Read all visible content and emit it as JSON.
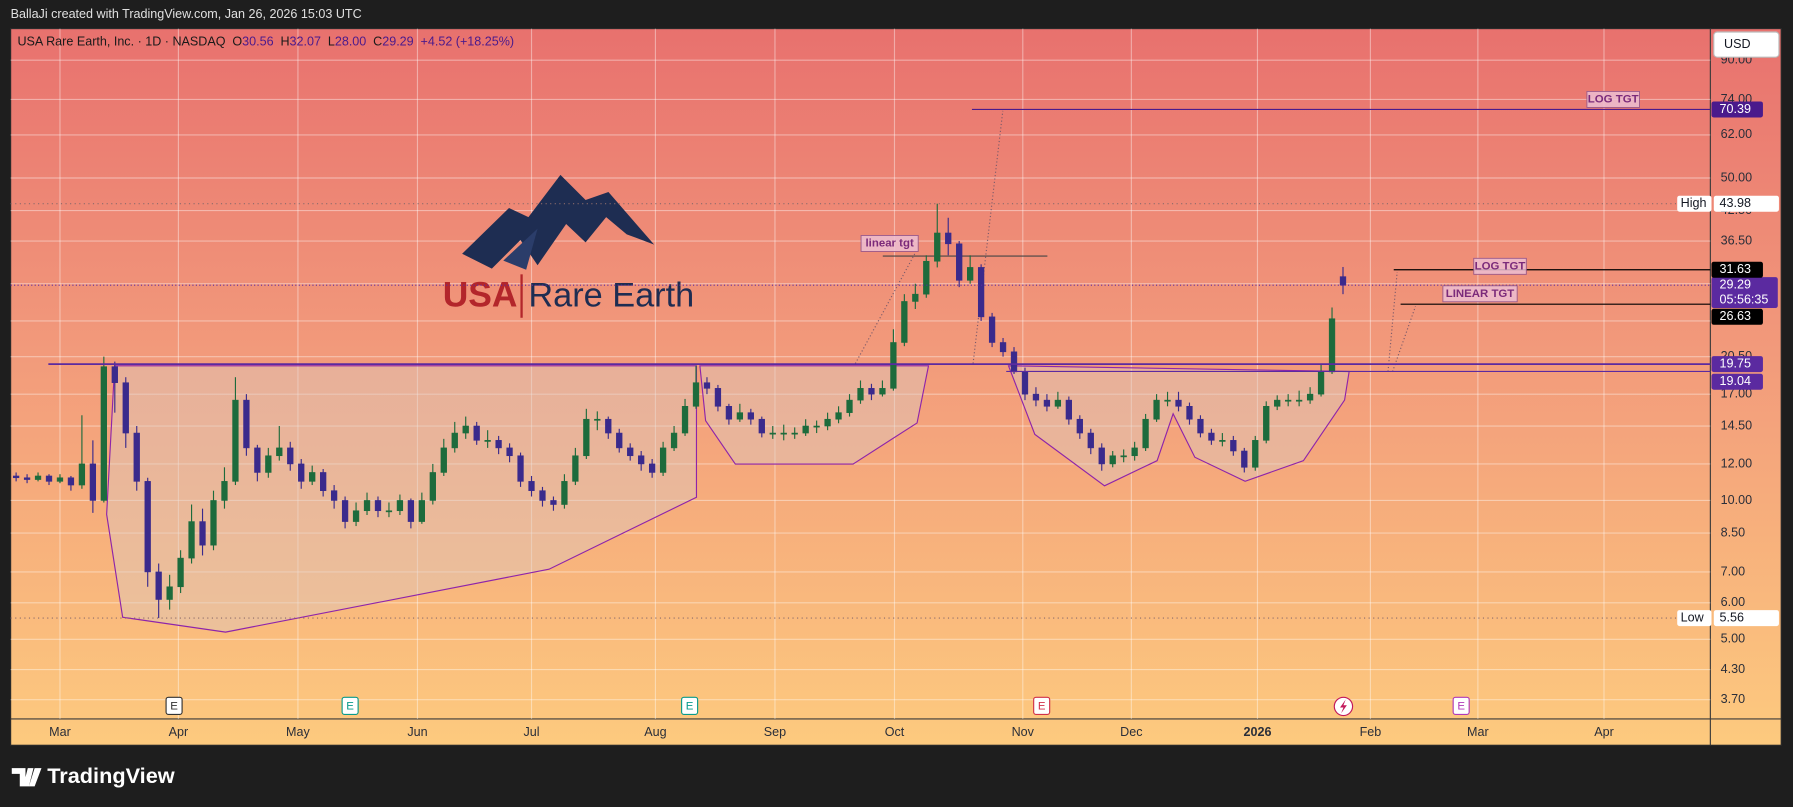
{
  "header": {
    "credit": "BallaJi created with TradingView.com, Jan 26, 2026 15:03 UTC",
    "brand": "TradingView",
    "currency": "USD"
  },
  "chart_data": {
    "type": "candlestick",
    "title": "USA Rare Earth, Inc. · 1D · NASDAQ",
    "ohlc_labels": [
      "O",
      "H",
      "L",
      "C"
    ],
    "last_labels": [
      "30.56",
      "32.07",
      "28.00",
      "29.29"
    ],
    "change_label": "+4.52 (+18.25%)",
    "logo": [
      "USA",
      "Rare Earth"
    ],
    "log_scale": true,
    "grid": true,
    "up_color": "#1d6b3c",
    "down_color": "#3a2a8c",
    "ohlc": [
      [
        11.3,
        11.5,
        11.0,
        11.2
      ],
      [
        11.2,
        11.4,
        10.9,
        11.1
      ],
      [
        11.1,
        11.5,
        11.0,
        11.3
      ],
      [
        11.3,
        11.4,
        10.8,
        11.0
      ],
      [
        11.0,
        11.4,
        10.9,
        11.2
      ],
      [
        11.2,
        11.3,
        10.5,
        10.8
      ],
      [
        10.8,
        15.3,
        10.6,
        12.0
      ],
      [
        12.0,
        13.5,
        9.4,
        10.0
      ],
      [
        10.0,
        20.5,
        9.9,
        19.5
      ],
      [
        19.5,
        20.0,
        15.5,
        18.0
      ],
      [
        18.0,
        18.5,
        13.0,
        14.0
      ],
      [
        14.0,
        14.5,
        10.5,
        11.0
      ],
      [
        11.0,
        11.2,
        6.5,
        7.0
      ],
      [
        7.0,
        7.3,
        5.56,
        6.1
      ],
      [
        6.1,
        6.9,
        5.8,
        6.5
      ],
      [
        6.5,
        7.8,
        6.3,
        7.5
      ],
      [
        7.5,
        9.8,
        7.3,
        9.0
      ],
      [
        9.0,
        9.6,
        7.6,
        8.0
      ],
      [
        8.0,
        10.5,
        7.8,
        10.0
      ],
      [
        10.0,
        11.8,
        9.6,
        11.0
      ],
      [
        11.0,
        18.5,
        10.8,
        16.5
      ],
      [
        16.5,
        17.0,
        12.5,
        13.0
      ],
      [
        13.0,
        13.2,
        11.0,
        11.5
      ],
      [
        11.5,
        13.0,
        11.2,
        12.5
      ],
      [
        12.5,
        14.5,
        12.2,
        13.0
      ],
      [
        13.0,
        13.4,
        11.6,
        12.0
      ],
      [
        12.0,
        12.3,
        10.6,
        11.0
      ],
      [
        11.0,
        11.9,
        10.8,
        11.5
      ],
      [
        11.5,
        11.7,
        10.2,
        10.5
      ],
      [
        10.5,
        10.8,
        9.6,
        10.0
      ],
      [
        10.0,
        10.2,
        8.7,
        9.0
      ],
      [
        9.0,
        9.9,
        8.8,
        9.5
      ],
      [
        9.5,
        10.4,
        9.3,
        10.0
      ],
      [
        10.0,
        10.2,
        9.2,
        9.5
      ],
      [
        9.5,
        9.9,
        9.2,
        9.5
      ],
      [
        9.5,
        10.3,
        9.3,
        10.0
      ],
      [
        10.0,
        10.1,
        8.7,
        9.0
      ],
      [
        9.0,
        10.4,
        8.9,
        10.0
      ],
      [
        10.0,
        12.0,
        9.8,
        11.5
      ],
      [
        11.5,
        13.6,
        11.3,
        13.0
      ],
      [
        13.0,
        14.8,
        12.7,
        14.0
      ],
      [
        14.0,
        15.2,
        13.6,
        14.5
      ],
      [
        14.5,
        14.8,
        13.2,
        13.5
      ],
      [
        13.5,
        14.2,
        13.0,
        13.5
      ],
      [
        13.5,
        13.8,
        12.6,
        13.0
      ],
      [
        13.0,
        13.3,
        12.1,
        12.5
      ],
      [
        12.5,
        12.7,
        10.7,
        11.0
      ],
      [
        11.0,
        11.3,
        10.2,
        10.5
      ],
      [
        10.5,
        10.7,
        9.7,
        10.0
      ],
      [
        10.0,
        10.2,
        9.5,
        9.8
      ],
      [
        9.8,
        11.4,
        9.6,
        11.0
      ],
      [
        11.0,
        13.0,
        10.8,
        12.5
      ],
      [
        12.5,
        15.8,
        12.3,
        15.0
      ],
      [
        15.0,
        15.6,
        14.2,
        15.0
      ],
      [
        15.0,
        15.2,
        13.6,
        14.0
      ],
      [
        14.0,
        14.3,
        12.7,
        13.0
      ],
      [
        13.0,
        13.3,
        12.2,
        12.5
      ],
      [
        12.5,
        12.8,
        11.6,
        12.0
      ],
      [
        12.0,
        12.3,
        11.2,
        11.5
      ],
      [
        11.5,
        13.4,
        11.3,
        13.0
      ],
      [
        13.0,
        14.5,
        12.8,
        14.0
      ],
      [
        14.0,
        16.6,
        13.8,
        16.0
      ],
      [
        16.0,
        19.6,
        15.8,
        18.0
      ],
      [
        18.0,
        18.5,
        17.0,
        17.5
      ],
      [
        17.5,
        17.8,
        15.6,
        16.0
      ],
      [
        16.0,
        16.2,
        14.6,
        15.0
      ],
      [
        15.0,
        16.2,
        14.8,
        15.5
      ],
      [
        15.5,
        15.8,
        14.6,
        15.0
      ],
      [
        15.0,
        15.2,
        13.7,
        14.0
      ],
      [
        14.0,
        14.5,
        13.6,
        14.0
      ],
      [
        14.0,
        14.6,
        13.5,
        14.0
      ],
      [
        14.0,
        14.4,
        13.6,
        14.0
      ],
      [
        14.0,
        15.0,
        13.8,
        14.5
      ],
      [
        14.5,
        14.9,
        14.0,
        14.5
      ],
      [
        14.5,
        15.5,
        14.2,
        15.0
      ],
      [
        15.0,
        16.0,
        14.7,
        15.5
      ],
      [
        15.5,
        17.0,
        15.2,
        16.5
      ],
      [
        16.5,
        18.2,
        16.2,
        17.5
      ],
      [
        17.5,
        17.9,
        16.5,
        17.0
      ],
      [
        17.0,
        18.2,
        16.8,
        17.5
      ],
      [
        17.5,
        23.5,
        17.3,
        22.0
      ],
      [
        22.0,
        28.0,
        21.6,
        27.0
      ],
      [
        27.0,
        29.5,
        26.0,
        28.0
      ],
      [
        28.0,
        34.0,
        27.5,
        33.0
      ],
      [
        33.0,
        43.98,
        32.0,
        38.0
      ],
      [
        38.0,
        41.0,
        34.0,
        36.0
      ],
      [
        36.0,
        36.5,
        29.0,
        30.0
      ],
      [
        30.0,
        34.0,
        29.5,
        32.0
      ],
      [
        32.0,
        32.5,
        24.5,
        25.0
      ],
      [
        25.0,
        25.5,
        21.5,
        22.0
      ],
      [
        22.0,
        22.5,
        20.5,
        21.0
      ],
      [
        21.0,
        21.5,
        18.8,
        19.0
      ],
      [
        19.0,
        19.4,
        16.5,
        17.0
      ],
      [
        17.0,
        17.6,
        16.0,
        16.5
      ],
      [
        16.5,
        17.0,
        15.6,
        16.0
      ],
      [
        16.0,
        17.2,
        15.8,
        16.5
      ],
      [
        16.5,
        16.8,
        14.6,
        15.0
      ],
      [
        15.0,
        15.3,
        13.6,
        14.0
      ],
      [
        14.0,
        14.3,
        12.6,
        13.0
      ],
      [
        13.0,
        13.3,
        11.6,
        12.0
      ],
      [
        12.0,
        12.8,
        11.8,
        12.5
      ],
      [
        12.5,
        12.9,
        12.1,
        12.5
      ],
      [
        12.5,
        13.4,
        12.2,
        13.0
      ],
      [
        13.0,
        15.4,
        12.8,
        15.0
      ],
      [
        15.0,
        17.0,
        14.8,
        16.5
      ],
      [
        16.5,
        17.2,
        16.0,
        16.5
      ],
      [
        16.5,
        17.2,
        15.6,
        16.0
      ],
      [
        16.0,
        16.3,
        14.6,
        15.0
      ],
      [
        15.0,
        15.3,
        13.7,
        14.0
      ],
      [
        14.0,
        14.3,
        13.2,
        13.5
      ],
      [
        13.5,
        14.0,
        13.1,
        13.5
      ],
      [
        13.5,
        13.8,
        12.5,
        12.8
      ],
      [
        12.8,
        13.0,
        11.5,
        11.8
      ],
      [
        11.8,
        13.8,
        11.6,
        13.5
      ],
      [
        13.5,
        16.4,
        13.3,
        16.0
      ],
      [
        16.0,
        16.9,
        15.7,
        16.5
      ],
      [
        16.5,
        17.0,
        16.0,
        16.5
      ],
      [
        16.5,
        17.3,
        16.0,
        16.5
      ],
      [
        16.5,
        17.6,
        16.2,
        17.0
      ],
      [
        17.0,
        19.8,
        16.8,
        19.0
      ],
      [
        19.0,
        26.2,
        18.8,
        24.77
      ],
      [
        30.56,
        32.07,
        28.0,
        29.29
      ]
    ],
    "xlim": [
      -0.5,
      154.5
    ],
    "xticks": [
      {
        "value": 4.0,
        "label": "Mar"
      },
      {
        "value": 14.8,
        "label": "Apr"
      },
      {
        "value": 25.7,
        "label": "May"
      },
      {
        "value": 36.6,
        "label": "Jun"
      },
      {
        "value": 47.0,
        "label": "Jul"
      },
      {
        "value": 58.3,
        "label": "Aug"
      },
      {
        "value": 69.2,
        "label": "Sep"
      },
      {
        "value": 80.1,
        "label": "Oct"
      },
      {
        "value": 91.8,
        "label": "Nov"
      },
      {
        "value": 101.7,
        "label": "Dec"
      },
      {
        "value": 113.2,
        "label": "2026"
      },
      {
        "value": 123.5,
        "label": "Feb"
      },
      {
        "value": 133.3,
        "label": "Mar"
      },
      {
        "value": 144.8,
        "label": "Apr"
      }
    ],
    "ylim": [
      3.36,
      105.4
    ],
    "yticks": [
      {
        "value": 90,
        "label": "90.00"
      },
      {
        "value": 74,
        "label": "74.00"
      },
      {
        "value": 62,
        "label": "62.00"
      },
      {
        "value": 50,
        "label": "50.00"
      },
      {
        "value": 42.5,
        "label": "42.50"
      },
      {
        "value": 36.5,
        "label": "36.50"
      },
      {
        "value": 29.5,
        "label": "29.50"
      },
      {
        "value": 24.5,
        "label": "24.50"
      },
      {
        "value": 20.5,
        "label": "20.50"
      },
      {
        "value": 17,
        "label": "17.00"
      },
      {
        "value": 14.5,
        "label": "14.50"
      },
      {
        "value": 12,
        "label": "12.00"
      },
      {
        "value": 10,
        "label": "10.00"
      },
      {
        "value": 8.5,
        "label": "8.50"
      },
      {
        "value": 7,
        "label": "7.00"
      },
      {
        "value": 6,
        "label": "6.00"
      },
      {
        "value": 5,
        "label": "5.00"
      },
      {
        "value": 4.3,
        "label": "4.30"
      },
      {
        "value": 3.7,
        "label": "3.70"
      }
    ],
    "high": {
      "label": "High",
      "value": 43.98
    },
    "low": {
      "label": "Low",
      "value": 5.56
    },
    "countdown": "05:56:35",
    "levels": [
      {
        "value": 70.39,
        "color": "#4a1a8c"
      },
      {
        "value": 31.63,
        "color": "#000000"
      },
      {
        "value": 26.63,
        "color": "#000000"
      },
      {
        "value": 19.75,
        "color": "#5b2aa0"
      },
      {
        "value": 19.04,
        "color": "#5b2aa0"
      }
    ],
    "annotations": [
      "linear tgt",
      "LOG TGT",
      "LOG TGT",
      "LINEAR TGT"
    ],
    "events": [
      "E",
      "E",
      "E",
      "E",
      "E"
    ]
  }
}
